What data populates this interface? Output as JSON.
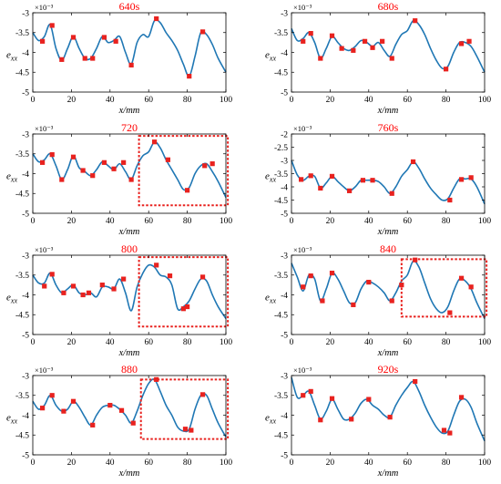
{
  "colors": {
    "curve": "#1f77b4",
    "marker": "#e8221f",
    "title": "#ff0000",
    "box": "#e8221f"
  },
  "chart_data": [
    {
      "type": "line",
      "title": "640s",
      "ylabel": "e_xx",
      "xlabel": "x/mm",
      "exponent": "×10⁻³",
      "xlim": [
        0,
        100
      ],
      "ylim": [
        -5,
        -3
      ],
      "xticks": [
        "0",
        "20",
        "40",
        "60",
        "80",
        "100"
      ],
      "yticks": [
        "-5",
        "-4.5",
        "-4",
        "-3.5",
        "-3"
      ],
      "x": [
        0,
        3,
        6,
        9,
        12,
        15,
        18,
        21,
        24,
        27,
        30,
        33,
        36,
        39,
        42,
        45,
        48,
        51,
        54,
        57,
        60,
        63,
        66,
        69,
        72,
        75,
        78,
        81,
        84,
        87,
        90,
        93,
        96,
        100
      ],
      "y": [
        -3.5,
        -3.7,
        -3.6,
        -3.3,
        -3.9,
        -4.2,
        -3.9,
        -3.6,
        -3.9,
        -4.15,
        -4.15,
        -3.9,
        -3.6,
        -3.75,
        -3.7,
        -3.6,
        -4.0,
        -4.3,
        -3.75,
        -3.55,
        -3.6,
        -3.2,
        -3.25,
        -3.5,
        -3.7,
        -3.95,
        -4.3,
        -4.6,
        -4.1,
        -3.5,
        -3.55,
        -3.8,
        -4.15,
        -4.5
      ],
      "markers_x": [
        5,
        10,
        15,
        21,
        27,
        31,
        37,
        43,
        51,
        64,
        81,
        88
      ],
      "markers_y": [
        -3.72,
        -3.32,
        -4.18,
        -3.62,
        -4.15,
        -4.15,
        -3.62,
        -3.72,
        -4.32,
        -3.15,
        -4.6,
        -3.48
      ]
    },
    {
      "type": "line",
      "title": "680s",
      "ylabel": "e_xx",
      "xlabel": "x/mm",
      "exponent": "×10⁻³",
      "xlim": [
        0,
        100
      ],
      "ylim": [
        -5,
        -3
      ],
      "xticks": [
        "0",
        "20",
        "40",
        "60",
        "80",
        "100"
      ],
      "yticks": [
        "-5",
        "-4.5",
        "-4",
        "-3.5",
        "-3"
      ],
      "x": [
        0,
        3,
        6,
        9,
        12,
        15,
        18,
        21,
        24,
        27,
        30,
        33,
        36,
        39,
        42,
        45,
        48,
        51,
        54,
        57,
        60,
        63,
        66,
        69,
        72,
        75,
        78,
        81,
        84,
        87,
        90,
        93,
        96,
        100
      ],
      "y": [
        -3.4,
        -3.7,
        -3.65,
        -3.5,
        -3.75,
        -4.15,
        -3.9,
        -3.6,
        -3.75,
        -3.9,
        -3.95,
        -3.85,
        -3.7,
        -3.75,
        -3.85,
        -3.75,
        -3.95,
        -4.1,
        -3.8,
        -3.55,
        -3.45,
        -3.2,
        -3.3,
        -3.55,
        -3.9,
        -4.2,
        -4.4,
        -4.35,
        -4.0,
        -3.75,
        -3.75,
        -3.85,
        -4.1,
        -4.5
      ],
      "markers_x": [
        6,
        10,
        15,
        21,
        26,
        32,
        38,
        42,
        47,
        52,
        64,
        80,
        88,
        92
      ],
      "markers_y": [
        -3.72,
        -3.52,
        -4.15,
        -3.58,
        -3.9,
        -3.95,
        -3.72,
        -3.88,
        -3.72,
        -4.15,
        -3.2,
        -4.42,
        -3.78,
        -3.72
      ]
    },
    {
      "type": "line",
      "title": "720",
      "ylabel": "e_xx",
      "xlabel": "x/mm",
      "exponent": "×10⁻³",
      "xlim": [
        0,
        100
      ],
      "ylim": [
        -5,
        -3
      ],
      "xticks": [
        "0",
        "20",
        "40",
        "60",
        "80",
        "100"
      ],
      "yticks": [
        "-5",
        "-4.5",
        "-4",
        "-3.5",
        "-3"
      ],
      "x": [
        0,
        3,
        6,
        9,
        12,
        15,
        18,
        21,
        24,
        27,
        30,
        33,
        36,
        39,
        42,
        45,
        48,
        51,
        54,
        57,
        60,
        63,
        66,
        69,
        72,
        75,
        78,
        81,
        84,
        87,
        90,
        93,
        96,
        100
      ],
      "y": [
        -3.5,
        -3.7,
        -3.65,
        -3.5,
        -3.8,
        -4.15,
        -3.9,
        -3.55,
        -3.85,
        -3.95,
        -4.05,
        -3.9,
        -3.7,
        -3.8,
        -3.9,
        -3.75,
        -3.95,
        -4.15,
        -3.8,
        -3.55,
        -3.45,
        -3.2,
        -3.35,
        -3.65,
        -3.9,
        -4.15,
        -4.4,
        -4.35,
        -4.0,
        -3.8,
        -3.75,
        -3.95,
        -4.2,
        -4.6
      ],
      "markers_x": [
        5,
        10,
        15,
        21,
        26,
        31,
        37,
        42,
        47,
        51,
        63,
        70,
        80,
        89,
        93
      ],
      "markers_y": [
        -3.72,
        -3.52,
        -4.15,
        -3.58,
        -3.92,
        -4.05,
        -3.72,
        -3.88,
        -3.72,
        -4.15,
        -3.2,
        -3.65,
        -4.42,
        -3.8,
        -3.75
      ],
      "highlight": {
        "x": [
          55,
          101
        ],
        "y": [
          -3.05,
          -4.8
        ]
      }
    },
    {
      "type": "line",
      "title": "760s",
      "ylabel": "e_xx",
      "xlabel": "x/mm",
      "exponent": "×10⁻³",
      "xlim": [
        0,
        100
      ],
      "ylim": [
        -5,
        -2
      ],
      "xticks": [
        "0",
        "20",
        "40",
        "60",
        "80",
        "100"
      ],
      "yticks": [
        "-5",
        "-4.5",
        "-4",
        "-3.5",
        "-3",
        "-2.5",
        "-2"
      ],
      "x": [
        0,
        3,
        6,
        9,
        12,
        15,
        18,
        21,
        24,
        27,
        30,
        33,
        36,
        39,
        42,
        45,
        48,
        51,
        54,
        57,
        60,
        63,
        66,
        69,
        72,
        75,
        78,
        81,
        84,
        87,
        90,
        93,
        96,
        100
      ],
      "y": [
        -3.0,
        -3.55,
        -3.75,
        -3.6,
        -3.6,
        -4.05,
        -3.85,
        -3.6,
        -3.8,
        -4.0,
        -4.15,
        -4.0,
        -3.75,
        -3.75,
        -3.75,
        -3.8,
        -4.0,
        -4.25,
        -4.0,
        -3.6,
        -3.35,
        -3.05,
        -3.3,
        -3.7,
        -4.05,
        -4.3,
        -4.5,
        -4.45,
        -4.05,
        -3.7,
        -3.7,
        -3.7,
        -4.0,
        -4.65
      ],
      "markers_x": [
        5,
        10,
        15,
        21,
        30,
        37,
        42,
        52,
        63,
        82,
        88,
        93
      ],
      "markers_y": [
        -3.72,
        -3.58,
        -4.05,
        -3.6,
        -4.15,
        -3.75,
        -3.75,
        -4.25,
        -3.05,
        -4.5,
        -3.72,
        -3.65
      ]
    },
    {
      "type": "line",
      "title": "800",
      "ylabel": "e_xx",
      "xlabel": "x/mm",
      "exponent": "×10⁻³",
      "xlim": [
        0,
        100
      ],
      "ylim": [
        -5,
        -3
      ],
      "xticks": [
        "0",
        "20",
        "40",
        "60",
        "80",
        "100"
      ],
      "yticks": [
        "-5",
        "-4.5",
        "-4",
        "-3.5",
        "-3"
      ],
      "x": [
        0,
        3,
        6,
        9,
        12,
        15,
        18,
        21,
        24,
        27,
        30,
        33,
        36,
        39,
        42,
        45,
        48,
        51,
        54,
        57,
        60,
        63,
        66,
        69,
        72,
        75,
        78,
        81,
        84,
        87,
        90,
        93,
        96,
        100
      ],
      "y": [
        -3.5,
        -3.7,
        -3.7,
        -3.45,
        -3.75,
        -3.95,
        -3.85,
        -3.75,
        -3.95,
        -4.0,
        -3.95,
        -4.05,
        -3.8,
        -3.8,
        -3.85,
        -3.6,
        -3.95,
        -4.4,
        -3.8,
        -3.45,
        -3.25,
        -3.3,
        -3.5,
        -3.55,
        -3.75,
        -4.35,
        -4.3,
        -4.15,
        -3.85,
        -3.6,
        -3.65,
        -4.0,
        -4.3,
        -4.6
      ],
      "markers_x": [
        6,
        10,
        16,
        21,
        26,
        29,
        36,
        42,
        47,
        64,
        71,
        78,
        80,
        88
      ],
      "markers_y": [
        -3.78,
        -3.48,
        -3.95,
        -3.78,
        -4.0,
        -3.95,
        -3.75,
        -3.85,
        -3.6,
        -3.25,
        -3.52,
        -4.35,
        -4.3,
        -3.55
      ],
      "highlight": {
        "x": [
          55,
          101
        ],
        "y": [
          -3.05,
          -4.8
        ]
      }
    },
    {
      "type": "line",
      "title": "840",
      "ylabel": "e_xx",
      "xlabel": "x/mm",
      "exponent": "×10⁻³",
      "xlim": [
        0,
        100
      ],
      "ylim": [
        -5,
        -3
      ],
      "xticks": [
        "0",
        "20",
        "40",
        "60",
        "80",
        "100"
      ],
      "yticks": [
        "-5",
        "-4.5",
        "-4",
        "-3.5",
        "-3"
      ],
      "x": [
        0,
        3,
        6,
        9,
        12,
        15,
        18,
        21,
        24,
        27,
        30,
        33,
        36,
        39,
        42,
        45,
        48,
        51,
        54,
        57,
        60,
        63,
        66,
        69,
        72,
        75,
        78,
        81,
        84,
        87,
        90,
        93,
        96,
        100
      ],
      "y": [
        -3.2,
        -3.55,
        -3.9,
        -3.5,
        -3.6,
        -4.15,
        -3.85,
        -3.45,
        -3.6,
        -3.9,
        -4.2,
        -4.2,
        -3.85,
        -3.65,
        -3.7,
        -3.8,
        -3.95,
        -4.15,
        -3.95,
        -3.65,
        -3.5,
        -3.15,
        -3.3,
        -3.7,
        -4.1,
        -4.35,
        -4.45,
        -4.3,
        -3.9,
        -3.6,
        -3.65,
        -3.85,
        -4.2,
        -4.6
      ],
      "markers_x": [
        6,
        10,
        16,
        21,
        32,
        40,
        52,
        57,
        64,
        82,
        88,
        93
      ],
      "markers_y": [
        -3.8,
        -3.52,
        -4.15,
        -3.45,
        -4.25,
        -3.68,
        -4.15,
        -3.75,
        -3.12,
        -4.45,
        -3.58,
        -3.8
      ],
      "highlight": {
        "x": [
          57,
          101
        ],
        "y": [
          -3.1,
          -4.55
        ]
      }
    },
    {
      "type": "line",
      "title": "880",
      "ylabel": "e_xx",
      "xlabel": "x/mm",
      "exponent": "×10⁻³",
      "xlim": [
        0,
        100
      ],
      "ylim": [
        -5,
        -3
      ],
      "xticks": [
        "0",
        "20",
        "40",
        "60",
        "80",
        "100"
      ],
      "yticks": [
        "-5",
        "-4.5",
        "-4",
        "-3.5",
        "-3"
      ],
      "x": [
        0,
        3,
        6,
        9,
        12,
        15,
        18,
        21,
        24,
        27,
        30,
        33,
        36,
        39,
        42,
        45,
        48,
        51,
        54,
        57,
        60,
        63,
        66,
        69,
        72,
        75,
        78,
        81,
        84,
        87,
        90,
        93,
        96,
        100
      ],
      "y": [
        -3.65,
        -3.85,
        -3.75,
        -3.5,
        -3.75,
        -3.9,
        -3.85,
        -3.65,
        -3.8,
        -4.05,
        -4.25,
        -4.0,
        -3.8,
        -3.75,
        -3.75,
        -3.85,
        -4.0,
        -4.2,
        -3.9,
        -3.5,
        -3.2,
        -3.1,
        -3.4,
        -3.75,
        -4.0,
        -4.3,
        -4.4,
        -4.35,
        -3.85,
        -3.5,
        -3.5,
        -3.85,
        -4.2,
        -4.55
      ],
      "markers_x": [
        5,
        10,
        16,
        21,
        31,
        40,
        46,
        52,
        64,
        79,
        82,
        88
      ],
      "markers_y": [
        -3.82,
        -3.5,
        -3.9,
        -3.65,
        -4.25,
        -3.75,
        -3.88,
        -4.2,
        -3.1,
        -4.35,
        -4.38,
        -3.48
      ],
      "highlight": {
        "x": [
          56,
          101
        ],
        "y": [
          -3.1,
          -4.6
        ]
      }
    },
    {
      "type": "line",
      "title": "920s",
      "ylabel": "e_xx",
      "xlabel": "x/mm",
      "exponent": "×10⁻³",
      "xlim": [
        0,
        100
      ],
      "ylim": [
        -5,
        -3
      ],
      "xticks": [
        "0",
        "20",
        "40",
        "60",
        "80",
        "100"
      ],
      "yticks": [
        "-5",
        "-4.5",
        "-4",
        "-3.5",
        "-3"
      ],
      "x": [
        0,
        3,
        6,
        9,
        12,
        15,
        18,
        21,
        24,
        27,
        30,
        33,
        36,
        39,
        42,
        45,
        48,
        51,
        54,
        57,
        60,
        63,
        66,
        69,
        72,
        75,
        78,
        81,
        84,
        87,
        90,
        93,
        96,
        100
      ],
      "y": [
        -3.05,
        -3.55,
        -3.5,
        -3.4,
        -3.75,
        -4.1,
        -3.9,
        -3.6,
        -3.85,
        -4.1,
        -4.1,
        -3.95,
        -3.7,
        -3.6,
        -3.75,
        -3.85,
        -4.0,
        -4.05,
        -3.75,
        -3.5,
        -3.3,
        -3.15,
        -3.4,
        -3.75,
        -4.05,
        -4.3,
        -4.45,
        -4.4,
        -4.0,
        -3.65,
        -3.6,
        -3.8,
        -4.2,
        -4.65
      ],
      "markers_x": [
        6,
        10,
        15,
        21,
        31,
        40,
        51,
        64,
        79,
        82,
        88
      ],
      "markers_y": [
        -3.5,
        -3.4,
        -4.12,
        -3.58,
        -4.1,
        -3.6,
        -4.05,
        -3.15,
        -4.38,
        -4.45,
        -3.55
      ]
    }
  ]
}
